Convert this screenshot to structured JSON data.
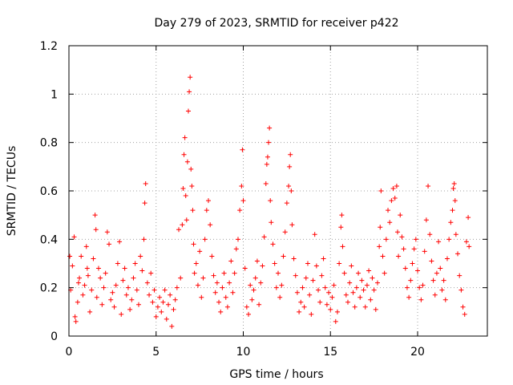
{
  "chart_data": {
    "type": "scatter",
    "title": "Day 279 of 2023, SRMTID for receiver p422",
    "xlabel": "GPS time / hours",
    "ylabel": "SRMTID / TECUs",
    "xlim": [
      0,
      24
    ],
    "ylim": [
      0,
      1.2
    ],
    "xticks": [
      0,
      5,
      10,
      15,
      20
    ],
    "xtick_labels": [
      "0",
      "5",
      "10",
      "15",
      "20"
    ],
    "yticks": [
      0,
      0.2,
      0.4,
      0.6,
      0.8,
      1.0,
      1.2
    ],
    "ytick_labels": [
      "0",
      "0.2",
      "0.4",
      "0.6",
      "0.8",
      "1",
      "1.2"
    ],
    "grid": true,
    "marker": "+",
    "color": "#ff0000",
    "series": [
      {
        "name": "SRMTID",
        "points": [
          [
            0.05,
            0.33
          ],
          [
            0.1,
            0.19
          ],
          [
            0.2,
            0.29
          ],
          [
            0.3,
            0.41
          ],
          [
            0.35,
            0.08
          ],
          [
            0.4,
            0.06
          ],
          [
            0.5,
            0.14
          ],
          [
            0.55,
            0.22
          ],
          [
            0.6,
            0.24
          ],
          [
            0.7,
            0.33
          ],
          [
            0.8,
            0.17
          ],
          [
            0.9,
            0.21
          ],
          [
            1.0,
            0.37
          ],
          [
            1.05,
            0.28
          ],
          [
            1.1,
            0.25
          ],
          [
            1.2,
            0.1
          ],
          [
            1.3,
            0.19
          ],
          [
            1.4,
            0.32
          ],
          [
            1.5,
            0.5
          ],
          [
            1.55,
            0.44
          ],
          [
            1.6,
            0.16
          ],
          [
            1.7,
            0.28
          ],
          [
            1.8,
            0.24
          ],
          [
            1.9,
            0.13
          ],
          [
            2.0,
            0.2
          ],
          [
            2.1,
            0.26
          ],
          [
            2.2,
            0.43
          ],
          [
            2.3,
            0.38
          ],
          [
            2.4,
            0.15
          ],
          [
            2.5,
            0.18
          ],
          [
            2.6,
            0.12
          ],
          [
            2.7,
            0.21
          ],
          [
            2.8,
            0.3
          ],
          [
            2.9,
            0.39
          ],
          [
            3.0,
            0.09
          ],
          [
            3.1,
            0.23
          ],
          [
            3.2,
            0.28
          ],
          [
            3.3,
            0.17
          ],
          [
            3.4,
            0.2
          ],
          [
            3.5,
            0.11
          ],
          [
            3.6,
            0.15
          ],
          [
            3.7,
            0.24
          ],
          [
            3.8,
            0.3
          ],
          [
            3.9,
            0.19
          ],
          [
            4.0,
            0.13
          ],
          [
            4.1,
            0.33
          ],
          [
            4.2,
            0.27
          ],
          [
            4.3,
            0.4
          ],
          [
            4.35,
            0.55
          ],
          [
            4.4,
            0.63
          ],
          [
            4.5,
            0.22
          ],
          [
            4.6,
            0.17
          ],
          [
            4.7,
            0.26
          ],
          [
            4.8,
            0.14
          ],
          [
            4.9,
            0.19
          ],
          [
            5.0,
            0.08
          ],
          [
            5.1,
            0.12
          ],
          [
            5.2,
            0.16
          ],
          [
            5.3,
            0.1
          ],
          [
            5.4,
            0.14
          ],
          [
            5.5,
            0.19
          ],
          [
            5.6,
            0.07
          ],
          [
            5.7,
            0.13
          ],
          [
            5.8,
            0.17
          ],
          [
            5.9,
            0.04
          ],
          [
            6.0,
            0.11
          ],
          [
            6.1,
            0.15
          ],
          [
            6.2,
            0.2
          ],
          [
            6.3,
            0.44
          ],
          [
            6.4,
            0.24
          ],
          [
            6.5,
            0.46
          ],
          [
            6.55,
            0.61
          ],
          [
            6.6,
            0.75
          ],
          [
            6.65,
            0.82
          ],
          [
            6.7,
            0.58
          ],
          [
            6.75,
            0.48
          ],
          [
            6.8,
            0.72
          ],
          [
            6.85,
            0.93
          ],
          [
            6.9,
            1.01
          ],
          [
            6.95,
            1.07
          ],
          [
            7.0,
            0.69
          ],
          [
            7.05,
            0.62
          ],
          [
            7.1,
            0.52
          ],
          [
            7.15,
            0.38
          ],
          [
            7.2,
            0.26
          ],
          [
            7.3,
            0.3
          ],
          [
            7.4,
            0.21
          ],
          [
            7.5,
            0.35
          ],
          [
            7.6,
            0.16
          ],
          [
            7.7,
            0.24
          ],
          [
            7.8,
            0.4
          ],
          [
            7.9,
            0.52
          ],
          [
            8.0,
            0.56
          ],
          [
            8.1,
            0.46
          ],
          [
            8.2,
            0.33
          ],
          [
            8.3,
            0.25
          ],
          [
            8.4,
            0.18
          ],
          [
            8.5,
            0.22
          ],
          [
            8.6,
            0.14
          ],
          [
            8.7,
            0.1
          ],
          [
            8.8,
            0.2
          ],
          [
            8.9,
            0.26
          ],
          [
            9.0,
            0.16
          ],
          [
            9.1,
            0.12
          ],
          [
            9.2,
            0.22
          ],
          [
            9.3,
            0.31
          ],
          [
            9.4,
            0.18
          ],
          [
            9.5,
            0.26
          ],
          [
            9.6,
            0.36
          ],
          [
            9.7,
            0.4
          ],
          [
            9.8,
            0.52
          ],
          [
            9.9,
            0.62
          ],
          [
            9.95,
            0.77
          ],
          [
            10.0,
            0.56
          ],
          [
            10.1,
            0.28
          ],
          [
            10.2,
            0.12
          ],
          [
            10.3,
            0.09
          ],
          [
            10.4,
            0.21
          ],
          [
            10.5,
            0.15
          ],
          [
            10.6,
            0.19
          ],
          [
            10.7,
            0.24
          ],
          [
            10.8,
            0.31
          ],
          [
            10.9,
            0.13
          ],
          [
            11.0,
            0.22
          ],
          [
            11.1,
            0.29
          ],
          [
            11.2,
            0.41
          ],
          [
            11.3,
            0.63
          ],
          [
            11.35,
            0.71
          ],
          [
            11.4,
            0.74
          ],
          [
            11.45,
            0.8
          ],
          [
            11.5,
            0.86
          ],
          [
            11.55,
            0.56
          ],
          [
            11.6,
            0.47
          ],
          [
            11.7,
            0.38
          ],
          [
            11.8,
            0.3
          ],
          [
            11.9,
            0.2
          ],
          [
            12.0,
            0.26
          ],
          [
            12.1,
            0.16
          ],
          [
            12.2,
            0.21
          ],
          [
            12.3,
            0.33
          ],
          [
            12.4,
            0.43
          ],
          [
            12.5,
            0.55
          ],
          [
            12.6,
            0.62
          ],
          [
            12.65,
            0.7
          ],
          [
            12.7,
            0.75
          ],
          [
            12.75,
            0.6
          ],
          [
            12.8,
            0.46
          ],
          [
            12.9,
            0.32
          ],
          [
            13.0,
            0.25
          ],
          [
            13.1,
            0.18
          ],
          [
            13.2,
            0.1
          ],
          [
            13.3,
            0.14
          ],
          [
            13.4,
            0.2
          ],
          [
            13.5,
            0.12
          ],
          [
            13.6,
            0.24
          ],
          [
            13.7,
            0.3
          ],
          [
            13.8,
            0.17
          ],
          [
            13.9,
            0.09
          ],
          [
            14.0,
            0.23
          ],
          [
            14.1,
            0.42
          ],
          [
            14.2,
            0.29
          ],
          [
            14.3,
            0.19
          ],
          [
            14.4,
            0.14
          ],
          [
            14.5,
            0.25
          ],
          [
            14.6,
            0.32
          ],
          [
            14.7,
            0.2
          ],
          [
            14.8,
            0.13
          ],
          [
            14.9,
            0.18
          ],
          [
            15.0,
            0.11
          ],
          [
            15.1,
            0.16
          ],
          [
            15.2,
            0.21
          ],
          [
            15.3,
            0.06
          ],
          [
            15.4,
            0.1
          ],
          [
            15.5,
            0.3
          ],
          [
            15.6,
            0.45
          ],
          [
            15.65,
            0.5
          ],
          [
            15.7,
            0.37
          ],
          [
            15.8,
            0.26
          ],
          [
            15.9,
            0.17
          ],
          [
            16.0,
            0.14
          ],
          [
            16.1,
            0.22
          ],
          [
            16.2,
            0.29
          ],
          [
            16.3,
            0.18
          ],
          [
            16.4,
            0.12
          ],
          [
            16.5,
            0.2
          ],
          [
            16.6,
            0.26
          ],
          [
            16.7,
            0.16
          ],
          [
            16.8,
            0.23
          ],
          [
            16.9,
            0.19
          ],
          [
            17.0,
            0.12
          ],
          [
            17.1,
            0.21
          ],
          [
            17.2,
            0.27
          ],
          [
            17.3,
            0.15
          ],
          [
            17.4,
            0.24
          ],
          [
            17.5,
            0.19
          ],
          [
            17.6,
            0.11
          ],
          [
            17.7,
            0.22
          ],
          [
            17.8,
            0.37
          ],
          [
            17.85,
            0.45
          ],
          [
            17.9,
            0.6
          ],
          [
            18.0,
            0.33
          ],
          [
            18.1,
            0.26
          ],
          [
            18.2,
            0.4
          ],
          [
            18.3,
            0.52
          ],
          [
            18.4,
            0.47
          ],
          [
            18.5,
            0.56
          ],
          [
            18.6,
            0.61
          ],
          [
            18.7,
            0.57
          ],
          [
            18.8,
            0.62
          ],
          [
            18.85,
            0.43
          ],
          [
            18.9,
            0.33
          ],
          [
            19.0,
            0.5
          ],
          [
            19.1,
            0.41
          ],
          [
            19.2,
            0.36
          ],
          [
            19.3,
            0.28
          ],
          [
            19.4,
            0.2
          ],
          [
            19.5,
            0.16
          ],
          [
            19.6,
            0.23
          ],
          [
            19.7,
            0.3
          ],
          [
            19.8,
            0.36
          ],
          [
            19.9,
            0.4
          ],
          [
            20.0,
            0.27
          ],
          [
            20.1,
            0.2
          ],
          [
            20.2,
            0.15
          ],
          [
            20.3,
            0.21
          ],
          [
            20.4,
            0.35
          ],
          [
            20.5,
            0.48
          ],
          [
            20.6,
            0.62
          ],
          [
            20.7,
            0.42
          ],
          [
            20.8,
            0.31
          ],
          [
            20.9,
            0.23
          ],
          [
            21.0,
            0.17
          ],
          [
            21.1,
            0.26
          ],
          [
            21.2,
            0.39
          ],
          [
            21.3,
            0.28
          ],
          [
            21.4,
            0.19
          ],
          [
            21.5,
            0.23
          ],
          [
            21.6,
            0.15
          ],
          [
            21.7,
            0.32
          ],
          [
            21.8,
            0.4
          ],
          [
            21.9,
            0.47
          ],
          [
            22.0,
            0.52
          ],
          [
            22.05,
            0.61
          ],
          [
            22.1,
            0.63
          ],
          [
            22.15,
            0.56
          ],
          [
            22.2,
            0.42
          ],
          [
            22.3,
            0.34
          ],
          [
            22.4,
            0.25
          ],
          [
            22.5,
            0.19
          ],
          [
            22.6,
            0.12
          ],
          [
            22.7,
            0.09
          ],
          [
            22.8,
            0.39
          ],
          [
            22.9,
            0.49
          ],
          [
            22.95,
            0.37
          ]
        ]
      }
    ]
  }
}
